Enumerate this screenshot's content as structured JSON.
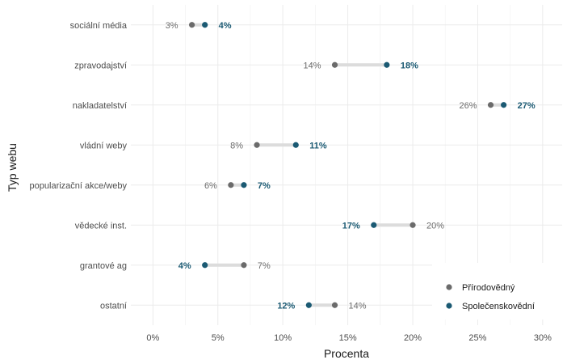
{
  "chart_data": {
    "type": "dumbbell",
    "xlabel": "Procenta",
    "ylabel": "Typ webu",
    "xlim": [
      -1.7,
      31.5
    ],
    "xticks": [
      0,
      5,
      10,
      15,
      20,
      25,
      30
    ],
    "xtick_labels": [
      "0%",
      "5%",
      "10%",
      "15%",
      "20%",
      "25%",
      "30%"
    ],
    "categories": [
      "sociální média",
      "zpravodajství",
      "nakladatelství",
      "vládní weby",
      "popularizační akce/weby",
      "vědecké inst.",
      "grantové ag",
      "ostatní"
    ],
    "series": [
      {
        "name": "Přírodovědný",
        "color": "#6b6b6b",
        "values": [
          3,
          14,
          26,
          8,
          6,
          20,
          7,
          14
        ],
        "labels": [
          "3%",
          "14%",
          "26%",
          "8%",
          "6%",
          "20%",
          "7%",
          "14%"
        ]
      },
      {
        "name": "Společenskovědní",
        "color": "#1b5a73",
        "values": [
          4,
          18,
          27,
          11,
          7,
          17,
          4,
          12
        ],
        "labels": [
          "4%",
          "18%",
          "27%",
          "11%",
          "7%",
          "17%",
          "4%",
          "12%"
        ]
      }
    ],
    "legend_position": "bottom-right",
    "grid": true
  }
}
